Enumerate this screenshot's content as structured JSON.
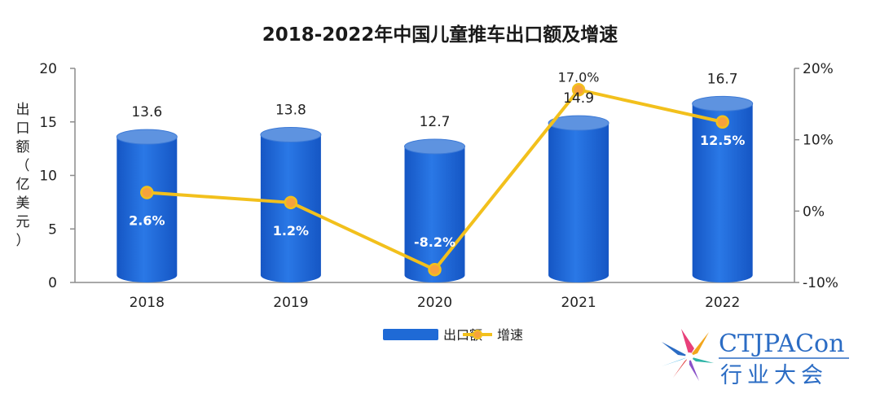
{
  "chart_data": {
    "type": "bar",
    "title": "2018-2022年中国儿童推车出口额及增速",
    "categories": [
      "2018",
      "2019",
      "2020",
      "2021",
      "2022"
    ],
    "series": [
      {
        "name": "出口额",
        "type": "bar",
        "values": [
          13.6,
          13.8,
          12.7,
          14.9,
          16.7
        ],
        "labels": [
          "13.6",
          "13.8",
          "12.7",
          "14.9",
          "16.7"
        ],
        "color": "#1f6ad6"
      },
      {
        "name": "增速",
        "type": "line",
        "values": [
          2.6,
          1.2,
          -8.2,
          17.0,
          12.5
        ],
        "labels": [
          "2.6%",
          "1.2%",
          "-8.2%",
          "17.0%",
          "12.5%"
        ],
        "color": "#f2c01c"
      }
    ],
    "ylabel": "出口额（亿美元）",
    "ylabel_chars": [
      "出",
      "口",
      "额",
      "（",
      "亿",
      "美",
      "元",
      "）"
    ],
    "ylim": [
      0,
      20
    ],
    "yticks": [
      "0",
      "5",
      "10",
      "15",
      "20"
    ],
    "y2lim": [
      -10,
      20
    ],
    "y2ticks": [
      "-10%",
      "0%",
      "10%",
      "20%"
    ],
    "legend": [
      "出口额",
      "增速"
    ],
    "legend_position": "bottom"
  },
  "logo": {
    "en": "CTJPACon",
    "cn": "行业大会"
  }
}
